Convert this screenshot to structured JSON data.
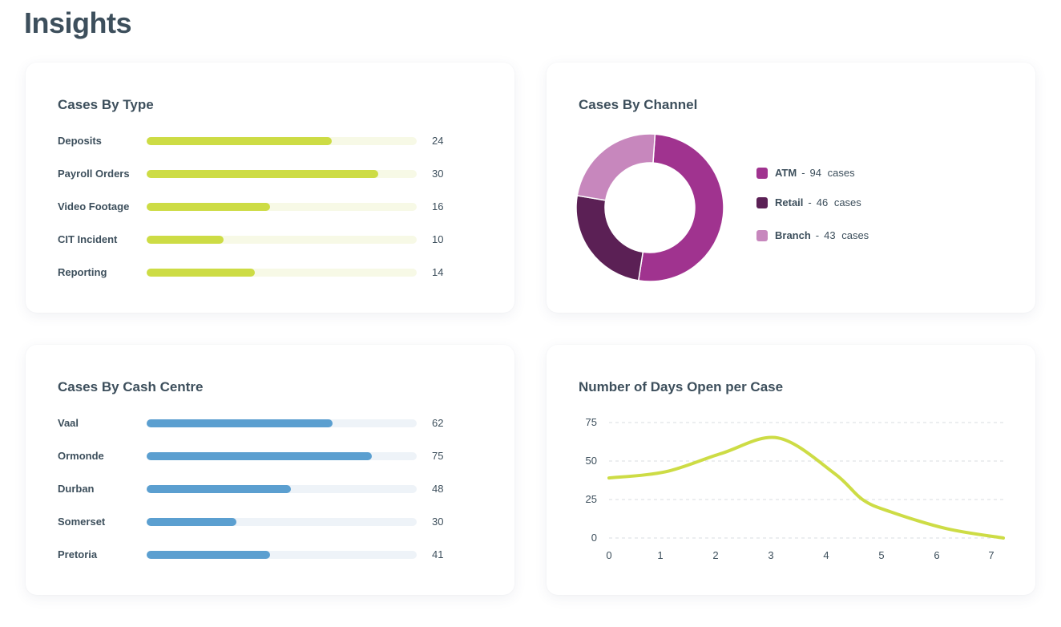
{
  "page": {
    "title": "Insights"
  },
  "cases_by_type": {
    "title": "Cases By Type",
    "max": 35,
    "items": [
      {
        "label": "Deposits",
        "value": 24
      },
      {
        "label": "Payroll Orders",
        "value": 30
      },
      {
        "label": "Video Footage",
        "value": 16
      },
      {
        "label": "CIT Incident",
        "value": 10
      },
      {
        "label": "Reporting",
        "value": 14
      }
    ]
  },
  "cases_by_channel": {
    "title": "Cases By Channel",
    "unit": "cases",
    "items": [
      {
        "label": "ATM",
        "value": 94,
        "color": "#a0338f"
      },
      {
        "label": "Retail",
        "value": 46,
        "color": "#5b2055"
      },
      {
        "label": "Branch",
        "value": 43,
        "color": "#c787bd"
      }
    ]
  },
  "cases_by_centre": {
    "title": "Cases By Cash Centre",
    "max": 90,
    "items": [
      {
        "label": "Vaal",
        "value": 62
      },
      {
        "label": "Ormonde",
        "value": 75
      },
      {
        "label": "Durban",
        "value": 48
      },
      {
        "label": "Somerset",
        "value": 30
      },
      {
        "label": "Pretoria",
        "value": 41
      }
    ]
  },
  "days_open": {
    "title": "Number of Days Open per Case"
  },
  "colors": {
    "type_bar": "#cddc45",
    "centre_bar": "#5b9fd0",
    "line": "#cddc45",
    "text": "#3d4f5c"
  },
  "chart_data": [
    {
      "type": "bar",
      "title": "Cases By Type",
      "categories": [
        "Deposits",
        "Payroll Orders",
        "Video Footage",
        "CIT Incident",
        "Reporting"
      ],
      "values": [
        24,
        30,
        16,
        10,
        14
      ]
    },
    {
      "type": "pie",
      "title": "Cases By Channel",
      "categories": [
        "ATM",
        "Retail",
        "Branch"
      ],
      "values": [
        94,
        46,
        43
      ]
    },
    {
      "type": "bar",
      "title": "Cases By Cash Centre",
      "categories": [
        "Vaal",
        "Ormonde",
        "Durban",
        "Somerset",
        "Pretoria"
      ],
      "values": [
        62,
        75,
        48,
        30,
        41
      ]
    },
    {
      "type": "line",
      "title": "Number of Days Open per Case",
      "x": [
        0,
        1,
        2,
        3,
        4,
        4.5,
        5,
        6,
        7
      ],
      "y": [
        39,
        43,
        55,
        65,
        42,
        25,
        17,
        6,
        0
      ],
      "xticks": [
        "0",
        "1",
        "2",
        "3",
        "4",
        "5",
        "6",
        "7"
      ],
      "yticks": [
        "0",
        "25",
        "50",
        "75"
      ],
      "xlim": [
        0,
        7
      ],
      "ylim": [
        0,
        75
      ],
      "grid": true
    }
  ]
}
